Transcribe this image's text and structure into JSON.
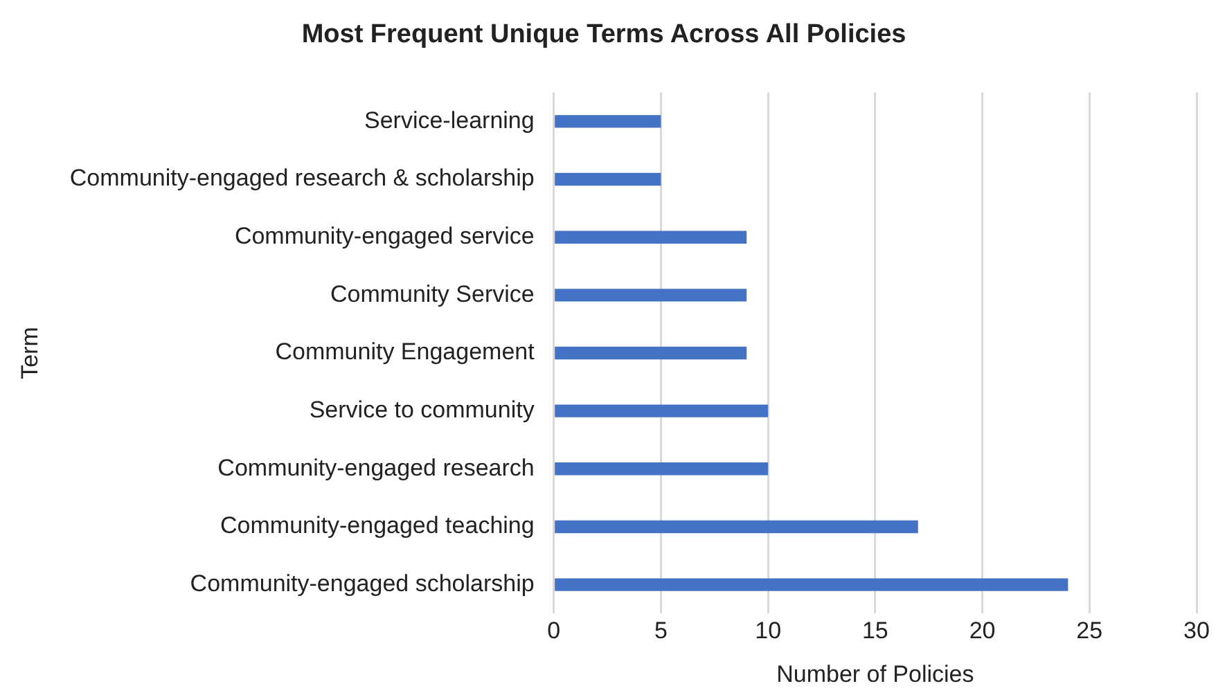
{
  "chart_data": {
    "type": "bar",
    "orientation": "horizontal",
    "title": "Most Frequent Unique Terms Across All Policies",
    "xlabel": "Number of Policies",
    "ylabel": "Term",
    "categories": [
      "Service-learning",
      "Community-engaged research & scholarship",
      "Community-engaged service",
      "Community Service",
      "Community Engagement",
      "Service to community",
      "Community-engaged research",
      "Community-engaged teaching",
      "Community-engaged scholarship"
    ],
    "values": [
      5,
      5,
      9,
      9,
      9,
      10,
      10,
      17,
      24
    ],
    "color": "#4472c4",
    "xlim": [
      0,
      30
    ],
    "xticks": [
      0,
      5,
      10,
      15,
      20,
      25,
      30
    ],
    "grid": "x",
    "legend": false
  }
}
